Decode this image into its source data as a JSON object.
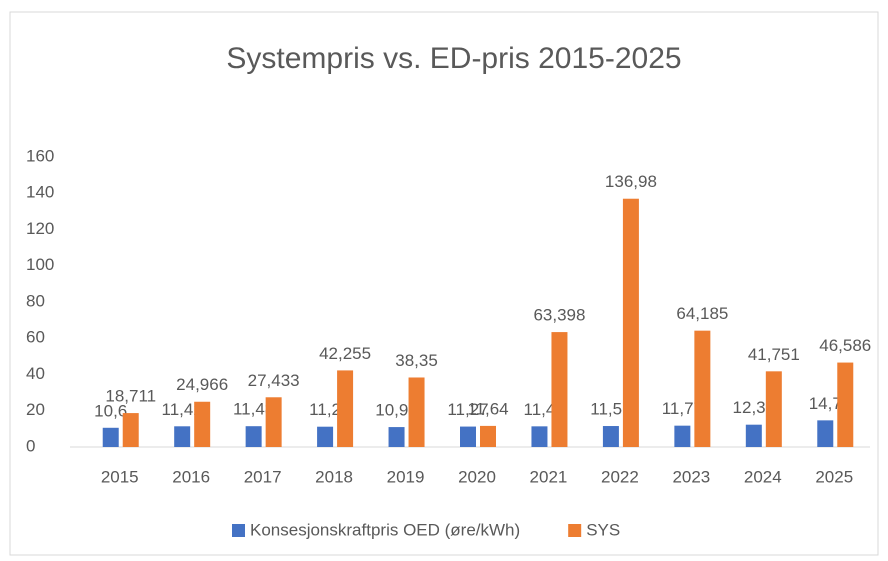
{
  "chart_data": {
    "type": "bar",
    "title": "Systempris vs. ED-pris 2015-2025",
    "categories": [
      "2015",
      "2016",
      "2017",
      "2018",
      "2019",
      "2020",
      "2021",
      "2022",
      "2023",
      "2024",
      "2025"
    ],
    "series": [
      {
        "name": "Konsesjonskraftpris OED (øre/kWh)",
        "color": "#4472c4",
        "values": [
          10.6,
          11.42,
          11.48,
          11.2,
          10.99,
          11.27,
          11.4,
          11.57,
          11.77,
          12.31,
          14.7
        ],
        "value_labels": [
          "10,6",
          "11,42",
          "11,48",
          "11,2",
          "10,99",
          "11,27",
          "11,4",
          "11,57",
          "11,77",
          "12,31",
          "14,7"
        ]
      },
      {
        "name": "SYS",
        "color": "#ed7d31",
        "values": [
          18.711,
          24.966,
          27.433,
          42.255,
          38.35,
          11.64,
          63.398,
          136.98,
          64.185,
          41.751,
          46.586
        ],
        "value_labels": [
          "18,711",
          "24,966",
          "27,433",
          "42,255",
          "38,35",
          "11,64",
          "63,398",
          "136,98",
          "64,185",
          "41,751",
          "46,586"
        ]
      }
    ],
    "ylim": [
      0,
      160
    ],
    "yticks": [
      0,
      20,
      40,
      60,
      80,
      100,
      120,
      140,
      160
    ],
    "grid": false,
    "legend": "bottom"
  }
}
